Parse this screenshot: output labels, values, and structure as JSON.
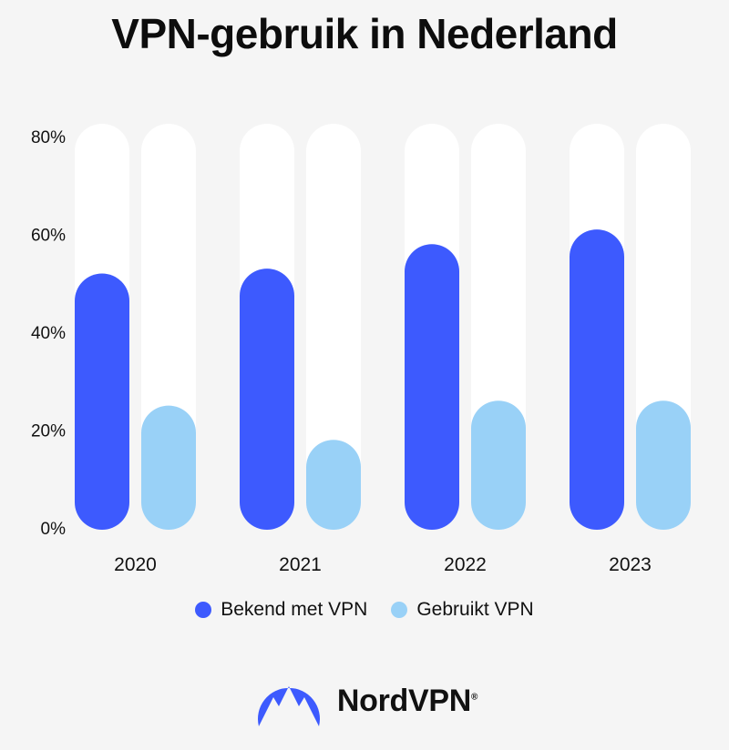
{
  "title": "VPN-gebruik in Nederland",
  "chart_data": {
    "type": "bar",
    "categories": [
      "2020",
      "2021",
      "2022",
      "2023"
    ],
    "series": [
      {
        "name": "Bekend met VPN",
        "values": [
          52,
          53,
          58,
          61
        ],
        "color": "#3d5afe"
      },
      {
        "name": "Gebruikt VPN",
        "values": [
          25,
          18,
          26,
          26
        ],
        "color": "#99d1f7"
      }
    ],
    "ylim": [
      0,
      80
    ],
    "yticks": [
      "0%",
      "20%",
      "40%",
      "60%",
      "80%"
    ],
    "ytick_values": [
      0,
      20,
      40,
      60,
      80
    ],
    "legend": "bottom-center",
    "grid": false
  },
  "brand": {
    "name": "NordVPN",
    "registered": "®",
    "logo_icon": "nordvpn-mountain-icon",
    "logo_color": "#3d5afe"
  }
}
